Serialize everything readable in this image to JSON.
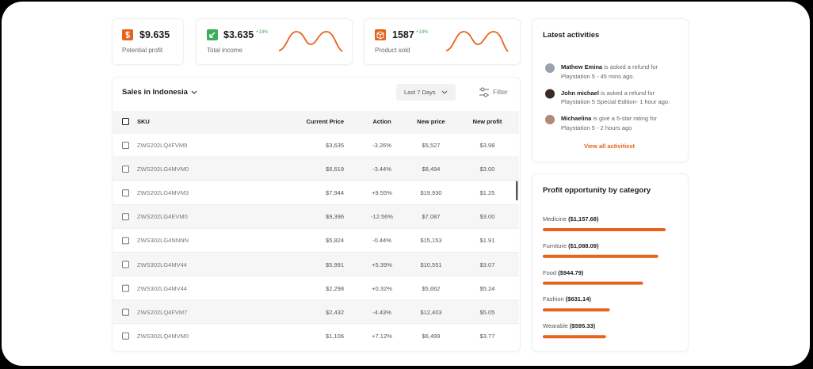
{
  "stats": [
    {
      "value": "$9.635",
      "label": "Potential profit"
    },
    {
      "value": "$3.635",
      "change": "+14%",
      "label": "Total income"
    },
    {
      "value": "1587",
      "change": "+14%",
      "label": "Product sold"
    }
  ],
  "table": {
    "title": "Sales in Indonesia",
    "period": "Last 7 Days",
    "filter": "Filter",
    "columns": [
      "SKU",
      "Current Price",
      "Action",
      "New price",
      "New profit"
    ],
    "rows": [
      [
        "ZWS202LQ4FVM9",
        "$3,635",
        "-3.26%",
        "$5,527",
        "$3.98"
      ],
      [
        "ZWS202LG4MVM0",
        "$6,619",
        "-3.44%",
        "$8,494",
        "$3.00"
      ],
      [
        "ZWS202LG4MVM3",
        "$7,944",
        "+9.55%",
        "$19,930",
        "$1.25"
      ],
      [
        "ZWS202LG4EVM0",
        "$9,396",
        "-12.56%",
        "$7,087",
        "$3.00"
      ],
      [
        "ZWS302LG4NNNN",
        "$5,824",
        "-0.44%",
        "$15,153",
        "$1.91"
      ],
      [
        "ZWS302LG4MV44",
        "$5,991",
        "+5.39%",
        "$10,551",
        "$3.07"
      ],
      [
        "ZWS302LG4MV44",
        "$2,298",
        "+0.32%",
        "$5,662",
        "$5.24"
      ],
      [
        "ZWS202LQ4FVM7",
        "$2,432",
        "-4.43%",
        "$12,403",
        "$5.05"
      ],
      [
        "ZWS302LQ4MVM0",
        "$1,106",
        "+7.12%",
        "$6,499",
        "$3.77"
      ]
    ]
  },
  "activities": {
    "title": "Latest activities",
    "items": [
      {
        "name": "Mathew Emina",
        "text": "is asked a refund for Playstation 5 - 45 mins ago."
      },
      {
        "name": "John michael",
        "text": "is asked a refund for Playstation 5 Special Edition- 1 hour ago."
      },
      {
        "name": "Michaelina",
        "text": "is give a 5-star rating for Playstation 5 - 2 hours ago"
      }
    ],
    "link": "View all activitiest"
  },
  "profit": {
    "title": "Profit opportunity by category",
    "items": [
      {
        "category": "Medicine",
        "value": 1157.68,
        "value_label": "($1,157.68)"
      },
      {
        "category": "Furniture",
        "value": 1088.09,
        "value_label": "($1,088.09)"
      },
      {
        "category": "Food",
        "value": 944.79,
        "value_label": "($944.79)"
      },
      {
        "category": "Fashion",
        "value": 631.14,
        "value_label": "($631.14)"
      },
      {
        "category": "Wearable",
        "value": 595.33,
        "value_label": "($595.33)"
      }
    ]
  }
}
